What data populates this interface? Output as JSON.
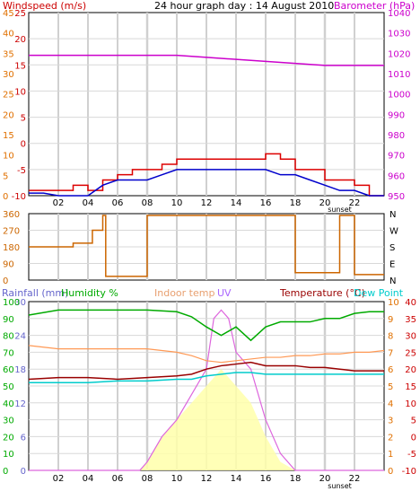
{
  "chart_data": [
    {
      "type": "line",
      "title": "24 hour graph day : 14 August 2010",
      "left_axis": {
        "label": "Windspeed (m/s)",
        "ticks": [
          25,
          20,
          15,
          10,
          5,
          0,
          -5,
          -10
        ],
        "range": [
          -10,
          25
        ],
        "color": "#cc0000"
      },
      "left_axis2": {
        "ticks": [
          45,
          40,
          35,
          30,
          25,
          20,
          15,
          10,
          5,
          0
        ],
        "color": "#e07000"
      },
      "right_axis": {
        "label": "Barometer (hPa)",
        "ticks": [
          1040,
          1030,
          1020,
          1010,
          1000,
          990,
          980,
          970,
          960,
          950
        ],
        "range": [
          950,
          1040
        ],
        "color": "#cc00cc"
      },
      "x_ticks": [
        "02",
        "04",
        "06",
        "08",
        "10",
        "12",
        "14",
        "16",
        "18",
        "20",
        "22"
      ],
      "annotation": "sunset",
      "series": [
        {
          "name": "Barometer (hPa)",
          "color": "#cc00cc",
          "x": [
            0,
            2,
            4,
            6,
            8,
            10,
            12,
            14,
            16,
            18,
            20,
            22,
            24
          ],
          "y": [
            1019,
            1019,
            1019,
            1019,
            1019,
            1019,
            1018,
            1017,
            1016,
            1015,
            1014,
            1014,
            1014
          ]
        },
        {
          "name": "",
          "color": "#dd0000",
          "x": [
            0,
            1,
            2,
            3,
            4,
            5,
            6,
            7,
            8,
            9,
            10,
            11,
            12,
            13,
            14,
            15,
            16,
            17,
            18,
            19,
            20,
            21,
            22,
            23,
            24
          ],
          "y": [
            -9,
            -9,
            -9,
            -8,
            -9,
            -7,
            -6,
            -5,
            -5,
            -4,
            -3,
            -3,
            -3,
            -3,
            -3,
            -3,
            -2,
            -3,
            -5,
            -5,
            -7,
            -7,
            -8,
            -10,
            -10
          ]
        },
        {
          "name": "",
          "color": "#0000cc",
          "x": [
            0,
            1,
            2,
            3,
            4,
            5,
            6,
            7,
            8,
            9,
            10,
            11,
            12,
            13,
            14,
            15,
            16,
            17,
            18,
            19,
            20,
            21,
            22,
            23,
            24
          ],
          "y": [
            -9.5,
            -9.5,
            -10,
            -10,
            -10,
            -8,
            -7,
            -7,
            -7,
            -6,
            -5,
            -5,
            -5,
            -5,
            -5,
            -5,
            -5,
            -6,
            -6,
            -7,
            -8,
            -9,
            -9,
            -10,
            -10
          ]
        }
      ]
    },
    {
      "type": "line",
      "left_axis": {
        "ticks": [
          360,
          270,
          180,
          90,
          0
        ],
        "range": [
          0,
          360
        ],
        "color": "#cc6600"
      },
      "right_axis": {
        "ticks": [
          "N",
          "W",
          "S",
          "E",
          "N"
        ]
      },
      "series": [
        {
          "name": "",
          "color": "#cc6600",
          "x": [
            0,
            2,
            3,
            4,
            4.3,
            5.0,
            5.2,
            5.5,
            6,
            7,
            8,
            9,
            10,
            11,
            12,
            13,
            14,
            15,
            16,
            17,
            18,
            19,
            20,
            21,
            22,
            23,
            24
          ],
          "y": [
            180,
            180,
            200,
            200,
            270,
            350,
            20,
            20,
            20,
            20,
            350,
            350,
            350,
            350,
            350,
            350,
            350,
            350,
            350,
            350,
            40,
            40,
            40,
            350,
            30,
            30,
            30
          ]
        }
      ]
    },
    {
      "type": "line",
      "left_axis": {
        "label": "Rainfall (mm)",
        "ticks": [
          30,
          24,
          18,
          12,
          6,
          0
        ],
        "color": "#6666cc"
      },
      "left_axis2": {
        "label": "Humidity %",
        "ticks": [
          100,
          90,
          80,
          70,
          60,
          50,
          40,
          30,
          20,
          10,
          0
        ],
        "color": "#00aa00"
      },
      "right_axis": {
        "label": "Temperature (°C)",
        "ticks": [
          40,
          35,
          30,
          25,
          20,
          15,
          10,
          5,
          0,
          -5,
          -10
        ],
        "color": "#cc0000"
      },
      "right_axis2": {
        "ticks": [
          10,
          9,
          8,
          7,
          6,
          5,
          4,
          3,
          2,
          1,
          0
        ],
        "color": "#e07000"
      },
      "legend": [
        "Rainfall (mm)",
        "Humidity %",
        "Indoor temp",
        "UV",
        "Temperature (°C)",
        "Dew Point"
      ],
      "x_ticks": [
        "02",
        "04",
        "06",
        "08",
        "10",
        "12",
        "14",
        "16",
        "18",
        "20",
        "22"
      ],
      "annotation": "sunset",
      "series": [
        {
          "name": "Humidity %",
          "color": "#00aa00",
          "x": [
            0,
            2,
            4,
            6,
            8,
            10,
            11,
            12,
            13,
            14,
            15,
            16,
            17,
            18,
            19,
            20,
            21,
            22,
            23,
            24
          ],
          "y": [
            92,
            95,
            95,
            95,
            95,
            94,
            91,
            85,
            80,
            85,
            77,
            85,
            88,
            88,
            88,
            90,
            90,
            93,
            94,
            94
          ]
        },
        {
          "name": "Indoor temp",
          "color": "#ff9955",
          "x": [
            0,
            2,
            4,
            6,
            8,
            10,
            11,
            12,
            13,
            14,
            15,
            16,
            17,
            18,
            19,
            20,
            21,
            22,
            23,
            24
          ],
          "y": [
            27,
            26,
            26,
            26,
            26,
            25,
            24,
            22.5,
            22,
            22.5,
            23,
            23.5,
            23.5,
            24,
            24,
            24.5,
            24.5,
            25,
            25,
            25.5
          ]
        },
        {
          "name": "Temperature (°C)",
          "color": "#990000",
          "x": [
            0,
            2,
            4,
            6,
            8,
            10,
            11,
            12,
            13,
            14,
            15,
            16,
            17,
            18,
            19,
            20,
            21,
            22,
            23,
            24
          ],
          "y": [
            17,
            17.5,
            17.5,
            17,
            17.5,
            18,
            18.5,
            20,
            21,
            21.5,
            22,
            21,
            21,
            21,
            20.5,
            20.5,
            20,
            19.5,
            19.5,
            19.5
          ]
        },
        {
          "name": "Dew Point",
          "color": "#00cccc",
          "x": [
            0,
            2,
            4,
            6,
            8,
            10,
            11,
            12,
            13,
            14,
            15,
            16,
            17,
            18,
            19,
            20,
            21,
            22,
            23,
            24
          ],
          "y": [
            16,
            16,
            16,
            16.5,
            16.5,
            17,
            17,
            18,
            18.5,
            19,
            19,
            18.5,
            18.5,
            18.5,
            18.5,
            18.5,
            18.5,
            18.5,
            18.5,
            18.5
          ]
        },
        {
          "name": "UV",
          "color": "#dd66dd",
          "x": [
            0,
            7.5,
            8,
            9,
            10,
            11,
            12,
            12.5,
            13,
            13.5,
            14,
            15,
            16,
            17,
            17.5,
            18,
            24
          ],
          "y": [
            0,
            0,
            0.5,
            2,
            3,
            4.5,
            6,
            9,
            9.5,
            9,
            7,
            6,
            3,
            1,
            0.5,
            0,
            0
          ]
        },
        {
          "name": "",
          "color": "#ffffaa",
          "x": [
            0,
            7.5,
            8,
            9,
            10,
            11,
            12,
            13,
            14,
            15,
            16,
            17,
            18,
            24
          ],
          "y": [
            0,
            0,
            0.5,
            2,
            3,
            4,
            5,
            6,
            5,
            4,
            2,
            0.5,
            0,
            0
          ]
        }
      ]
    }
  ]
}
